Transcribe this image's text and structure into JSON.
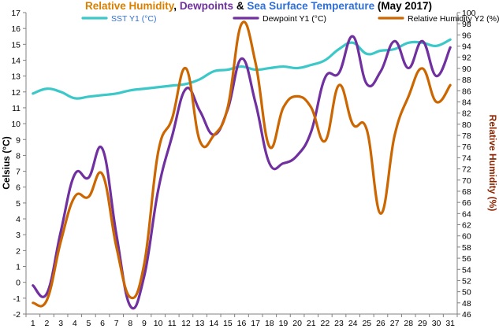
{
  "chart_data": {
    "type": "line",
    "title_parts": [
      {
        "text": "Relative Humidity",
        "color": "#D97F00"
      },
      {
        "text": ", ",
        "color": "#000000"
      },
      {
        "text": "Dewpoints",
        "color": "#7030A0"
      },
      {
        "text": " & ",
        "color": "#000000"
      },
      {
        "text": "Sea Surface Temperature",
        "color": "#2E6FD8"
      },
      {
        "text": " (May 2017)",
        "color": "#000000"
      }
    ],
    "ylabel": "Celsius (°C)",
    "y2label": "Relative Humidity  (%)",
    "x": [
      1,
      2,
      3,
      4,
      5,
      6,
      7,
      8,
      9,
      10,
      11,
      12,
      13,
      14,
      15,
      16,
      17,
      18,
      19,
      20,
      21,
      22,
      23,
      24,
      25,
      26,
      27,
      28,
      29,
      30,
      31
    ],
    "xlim": [
      0.5,
      31.5
    ],
    "ylim": [
      -2,
      17
    ],
    "y2lim": [
      46,
      100
    ],
    "series": [
      {
        "name": "SST Y1 (°C)",
        "axis": "y1",
        "color": "#3CC8C8",
        "values": [
          11.9,
          12.2,
          12.0,
          11.6,
          11.7,
          11.8,
          11.9,
          12.1,
          12.2,
          12.3,
          12.4,
          12.5,
          12.8,
          13.3,
          13.4,
          13.6,
          13.4,
          13.5,
          13.6,
          13.5,
          13.7,
          14.0,
          14.7,
          15.1,
          14.4,
          14.6,
          14.7,
          15.1,
          15.1,
          14.9,
          15.3
        ]
      },
      {
        "name": "Dewpoint Y1 (°C)",
        "axis": "y1",
        "color": "#7030A0",
        "values": [
          -0.2,
          -0.7,
          3.2,
          6.8,
          6.6,
          8.4,
          3.0,
          -1.5,
          0.4,
          5.8,
          9.2,
          12.2,
          10.8,
          9.3,
          10.9,
          14.1,
          11.3,
          7.5,
          7.5,
          8.0,
          9.5,
          12.9,
          13.2,
          15.5,
          12.5,
          13.3,
          15.2,
          13.5,
          15.2,
          13.0,
          14.8
        ]
      },
      {
        "name": "Relative Humidity Y2 (%)",
        "axis": "y2",
        "color": "#CC6600",
        "values": [
          48,
          48.5,
          59,
          67,
          67,
          71,
          58,
          49,
          55,
          75,
          81,
          90,
          77,
          78,
          83,
          98,
          91,
          76,
          83,
          85,
          83,
          77,
          87,
          80,
          79,
          64,
          78,
          85,
          90,
          84,
          87
        ]
      }
    ],
    "y1_ticks": [
      -2,
      -1,
      0,
      1,
      2,
      3,
      4,
      5,
      6,
      7,
      8,
      9,
      10,
      11,
      12,
      13,
      14,
      15,
      16,
      17
    ],
    "y2_ticks": [
      46,
      48,
      50,
      52,
      54,
      56,
      58,
      60,
      62,
      64,
      66,
      68,
      70,
      72,
      74,
      76,
      78,
      80,
      82,
      84,
      86,
      88,
      90,
      92,
      94,
      96,
      98,
      100
    ],
    "y2_tick_color": "#8B2500",
    "y2_label_color": "#8B2500",
    "grid": false,
    "legend_placement": "top"
  }
}
